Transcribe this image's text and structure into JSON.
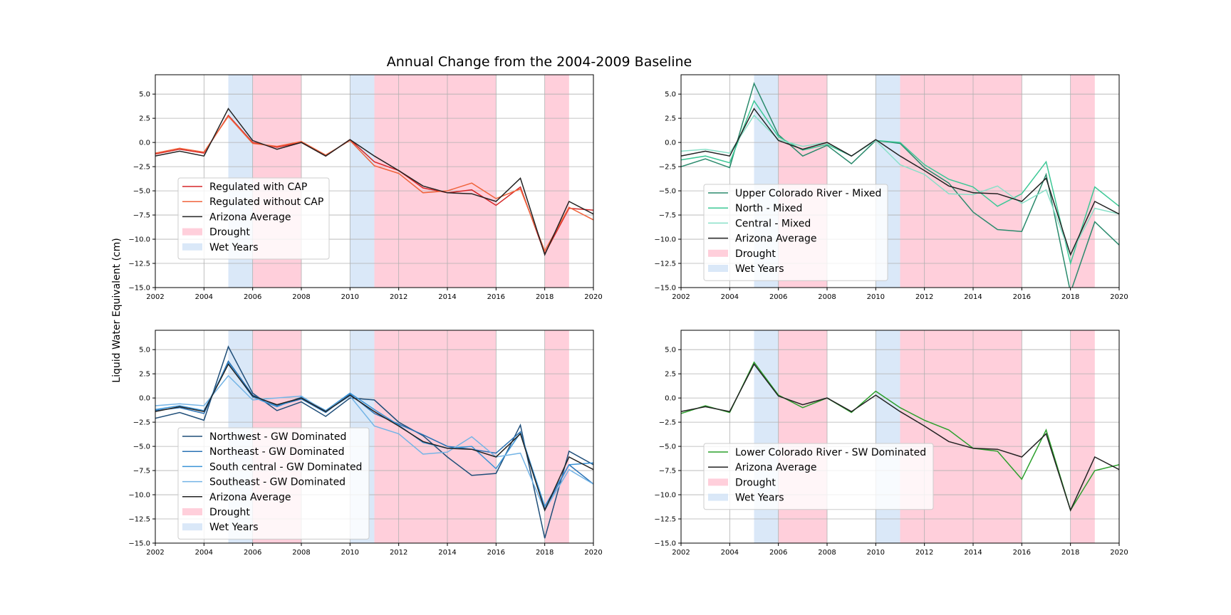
{
  "figure": {
    "title": "Annual Change from the 2004-2009 Baseline",
    "ylabel": "Liquid Water Equivalent (cm)"
  },
  "colors": {
    "drought": "#ffb6c8",
    "wet": "#c6dbf5",
    "grid": "#b0b0b0"
  },
  "chart_data": [
    {
      "type": "line",
      "xlim": [
        2002,
        2020
      ],
      "ylim": [
        -15,
        7
      ],
      "xticks": [
        2002,
        2004,
        2006,
        2008,
        2010,
        2012,
        2014,
        2016,
        2018,
        2020
      ],
      "yticks": [
        -15.0,
        -12.5,
        -10.0,
        -7.5,
        -5.0,
        -2.5,
        0.0,
        2.5,
        5.0
      ],
      "ytick_labels": [
        "−15.0",
        "−12.5",
        "−10.0",
        "−7.5",
        "−5.0",
        "−2.5",
        "0.0",
        "2.5",
        "5.0"
      ],
      "grid": true,
      "legend": "left",
      "drought": [
        [
          2006,
          2008
        ],
        [
          2011,
          2016
        ],
        [
          2018,
          2019
        ]
      ],
      "wet": [
        [
          2005,
          2006
        ],
        [
          2010,
          2011
        ]
      ],
      "x": [
        2002,
        2003,
        2004,
        2005,
        2006,
        2007,
        2008,
        2009,
        2010,
        2011,
        2012,
        2013,
        2014,
        2015,
        2016,
        2017,
        2018,
        2019,
        2020
      ],
      "series": [
        {
          "name": "Regulated with CAP",
          "color": "#d62728",
          "values": [
            -1.2,
            -0.7,
            -1.1,
            2.8,
            0.0,
            -0.5,
            0.0,
            -1.4,
            0.3,
            -2.0,
            -2.9,
            -4.7,
            -5.2,
            -4.9,
            -6.5,
            -4.6,
            -11.5,
            -6.8,
            -7.0
          ]
        },
        {
          "name": "Regulated without CAP",
          "color": "#f0643c",
          "values": [
            -1.1,
            -0.6,
            -1.0,
            2.7,
            -0.1,
            -0.4,
            0.1,
            -1.3,
            0.2,
            -2.4,
            -3.2,
            -5.2,
            -5.0,
            -4.2,
            -5.8,
            -4.8,
            -11.2,
            -6.7,
            -8.0
          ]
        },
        {
          "name": "Arizona Average",
          "color": "#222222",
          "values": [
            -1.4,
            -0.9,
            -1.4,
            3.5,
            0.2,
            -0.7,
            0.0,
            -1.4,
            0.3,
            -1.4,
            -2.9,
            -4.5,
            -5.2,
            -5.3,
            -6.1,
            -3.7,
            -11.6,
            -6.1,
            -7.4
          ]
        }
      ],
      "legend_labels": [
        "Regulated with CAP",
        "Regulated without CAP",
        "Arizona Average",
        "Drought",
        "Wet Years"
      ]
    },
    {
      "type": "line",
      "xlim": [
        2002,
        2020
      ],
      "ylim": [
        -15,
        7
      ],
      "xticks": [
        2002,
        2004,
        2006,
        2008,
        2010,
        2012,
        2014,
        2016,
        2018,
        2020
      ],
      "yticks": [
        -15.0,
        -12.5,
        -10.0,
        -7.5,
        -5.0,
        -2.5,
        0.0,
        2.5,
        5.0
      ],
      "ytick_labels": [
        "−15.0",
        "−12.5",
        "−10.0",
        "−7.5",
        "−5.0",
        "−2.5",
        "0.0",
        "2.5",
        "5.0"
      ],
      "grid": true,
      "legend": "left",
      "drought": [
        [
          2006,
          2008
        ],
        [
          2011,
          2016
        ],
        [
          2018,
          2019
        ]
      ],
      "wet": [
        [
          2005,
          2006
        ],
        [
          2010,
          2011
        ]
      ],
      "x": [
        2002,
        2003,
        2004,
        2005,
        2006,
        2007,
        2008,
        2009,
        2010,
        2011,
        2012,
        2013,
        2014,
        2015,
        2016,
        2017,
        2018,
        2019,
        2020
      ],
      "series": [
        {
          "name": "Upper Colorado River - Mixed",
          "color": "#2a8a6c",
          "values": [
            -2.5,
            -1.7,
            -2.6,
            6.1,
            0.8,
            -1.4,
            -0.3,
            -2.2,
            0.2,
            -0.1,
            -2.6,
            -4.2,
            -7.2,
            -9.0,
            -9.2,
            -3.3,
            -15.5,
            -8.2,
            -10.6
          ]
        },
        {
          "name": "North - Mixed",
          "color": "#3cc896",
          "values": [
            -1.8,
            -1.4,
            -2.1,
            4.3,
            0.6,
            -0.8,
            -0.2,
            -1.4,
            0.2,
            0.0,
            -2.3,
            -3.8,
            -4.6,
            -6.6,
            -5.3,
            -2.0,
            -12.5,
            -4.6,
            -6.6
          ]
        },
        {
          "name": "Central - Mixed",
          "color": "#88e0c8",
          "values": [
            -0.9,
            -0.7,
            -1.1,
            2.8,
            0.3,
            -0.4,
            0.0,
            -1.4,
            0.2,
            -2.3,
            -3.3,
            -5.3,
            -5.4,
            -4.5,
            -6.3,
            -4.9,
            -11.6,
            -6.8,
            -7.4
          ]
        },
        {
          "name": "Arizona Average",
          "color": "#222222",
          "values": [
            -1.4,
            -0.9,
            -1.4,
            3.5,
            0.2,
            -0.7,
            0.0,
            -1.4,
            0.3,
            -1.4,
            -2.9,
            -4.5,
            -5.2,
            -5.3,
            -6.1,
            -3.7,
            -11.6,
            -6.1,
            -7.4
          ]
        }
      ],
      "legend_labels": [
        "Upper Colorado River - Mixed",
        "North - Mixed",
        "Central - Mixed",
        "Arizona Average",
        "Drought",
        "Wet Years"
      ]
    },
    {
      "type": "line",
      "xlim": [
        2002,
        2020
      ],
      "ylim": [
        -15,
        7
      ],
      "xticks": [
        2002,
        2004,
        2006,
        2008,
        2010,
        2012,
        2014,
        2016,
        2018,
        2020
      ],
      "yticks": [
        -15.0,
        -12.5,
        -10.0,
        -7.5,
        -5.0,
        -2.5,
        0.0,
        2.5,
        5.0
      ],
      "ytick_labels": [
        "−15.0",
        "−12.5",
        "−10.0",
        "−7.5",
        "−5.0",
        "−2.5",
        "0.0",
        "2.5",
        "5.0"
      ],
      "grid": true,
      "legend": "left",
      "drought": [
        [
          2006,
          2008
        ],
        [
          2011,
          2016
        ],
        [
          2018,
          2019
        ]
      ],
      "wet": [
        [
          2005,
          2006
        ],
        [
          2010,
          2011
        ]
      ],
      "x": [
        2002,
        2003,
        2004,
        2005,
        2006,
        2007,
        2008,
        2009,
        2010,
        2011,
        2012,
        2013,
        2014,
        2015,
        2016,
        2017,
        2018,
        2019,
        2020
      ],
      "series": [
        {
          "name": "Northwest - GW Dominated",
          "color": "#1f4e79",
          "values": [
            -2.1,
            -1.5,
            -2.3,
            5.3,
            0.5,
            -1.3,
            -0.4,
            -1.9,
            0.0,
            -0.2,
            -2.5,
            -3.9,
            -6.1,
            -8.0,
            -7.8,
            -2.8,
            -14.5,
            -5.5,
            -6.9
          ]
        },
        {
          "name": "Northeast - GW Dominated",
          "color": "#2a72b5",
          "values": [
            -1.3,
            -1.0,
            -1.6,
            3.8,
            0.3,
            -0.8,
            -0.1,
            -1.5,
            0.4,
            -1.6,
            -2.7,
            -3.8,
            -5.0,
            -5.3,
            -5.7,
            -3.5,
            -11.5,
            -6.9,
            -8.9
          ]
        },
        {
          "name": "South central - GW Dominated",
          "color": "#3a93d6",
          "values": [
            -1.2,
            -0.8,
            -1.3,
            3.6,
            0.1,
            -0.9,
            0.1,
            -1.3,
            0.5,
            -1.2,
            -2.8,
            -4.6,
            -5.2,
            -5.0,
            -7.3,
            -3.6,
            -11.2,
            -6.9,
            -6.7
          ]
        },
        {
          "name": "Southeast - GW Dominated",
          "color": "#74b4e6",
          "values": [
            -0.8,
            -0.6,
            -0.8,
            2.3,
            -0.2,
            0.0,
            0.2,
            -1.4,
            0.2,
            -2.9,
            -3.7,
            -5.8,
            -5.6,
            -4.0,
            -6.1,
            -5.7,
            -11.6,
            -7.4,
            -8.9
          ]
        },
        {
          "name": "Arizona Average",
          "color": "#222222",
          "values": [
            -1.4,
            -0.9,
            -1.4,
            3.5,
            0.2,
            -0.7,
            0.0,
            -1.4,
            0.3,
            -1.4,
            -2.9,
            -4.5,
            -5.2,
            -5.3,
            -6.1,
            -3.7,
            -11.6,
            -6.1,
            -7.4
          ]
        }
      ],
      "legend_labels": [
        "Northwest - GW Dominated",
        "Northeast - GW Dominated",
        "South central - GW Dominated",
        "Southeast - GW Dominated",
        "Arizona Average",
        "Drought",
        "Wet Years"
      ]
    },
    {
      "type": "line",
      "xlim": [
        2002,
        2020
      ],
      "ylim": [
        -15,
        7
      ],
      "xticks": [
        2002,
        2004,
        2006,
        2008,
        2010,
        2012,
        2014,
        2016,
        2018,
        2020
      ],
      "yticks": [
        -15.0,
        -12.5,
        -10.0,
        -7.5,
        -5.0,
        -2.5,
        0.0,
        2.5,
        5.0
      ],
      "ytick_labels": [
        "−15.0",
        "−12.5",
        "−10.0",
        "−7.5",
        "−5.0",
        "−2.5",
        "0.0",
        "2.5",
        "5.0"
      ],
      "grid": true,
      "legend": "left",
      "drought": [
        [
          2006,
          2008
        ],
        [
          2011,
          2016
        ],
        [
          2018,
          2019
        ]
      ],
      "wet": [
        [
          2005,
          2006
        ],
        [
          2010,
          2011
        ]
      ],
      "x": [
        2002,
        2003,
        2004,
        2005,
        2006,
        2007,
        2008,
        2009,
        2010,
        2011,
        2012,
        2013,
        2014,
        2015,
        2016,
        2017,
        2018,
        2019,
        2020
      ],
      "series": [
        {
          "name": "Lower Colorado River - SW Dominated",
          "color": "#2ca02c",
          "values": [
            -1.6,
            -0.8,
            -1.5,
            3.7,
            0.3,
            -1.0,
            0.0,
            -1.5,
            0.7,
            -1.0,
            -2.3,
            -3.3,
            -5.2,
            -5.5,
            -8.4,
            -3.3,
            -11.6,
            -7.5,
            -6.9
          ]
        },
        {
          "name": "Arizona Average",
          "color": "#222222",
          "values": [
            -1.4,
            -0.9,
            -1.4,
            3.5,
            0.2,
            -0.7,
            0.0,
            -1.4,
            0.3,
            -1.4,
            -2.9,
            -4.5,
            -5.2,
            -5.3,
            -6.1,
            -3.7,
            -11.6,
            -6.1,
            -7.4
          ]
        }
      ],
      "legend_labels": [
        "Lower Colorado River - SW Dominated",
        "Arizona Average",
        "Drought",
        "Wet Years"
      ]
    }
  ]
}
